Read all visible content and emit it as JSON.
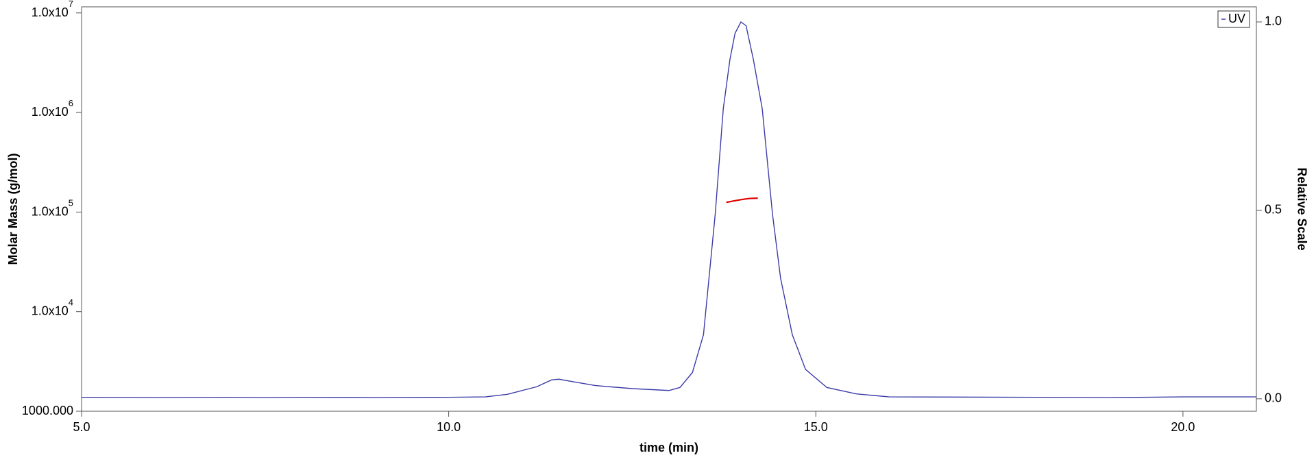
{
  "chart_data": {
    "type": "line",
    "xlabel": "time (min)",
    "ylabel": "Molar Mass (g/mol)",
    "y2label": "Relative Scale",
    "xlim": [
      5,
      21
    ],
    "xticks": [
      {
        "value": 5,
        "label": "5.0"
      },
      {
        "value": 10,
        "label": "10.0"
      },
      {
        "value": 15,
        "label": "15.0"
      },
      {
        "value": 20,
        "label": "20.0"
      }
    ],
    "ylim": [
      1000,
      11500000
    ],
    "yscale": "log",
    "yticks": [
      {
        "value": 1000,
        "label": "1000.000"
      },
      {
        "value": 10000,
        "label": "1.0x10",
        "exp": "4"
      },
      {
        "value": 100000,
        "label": "1.0x10",
        "exp": "5"
      },
      {
        "value": 1000000,
        "label": "1.0x10",
        "exp": "6"
      },
      {
        "value": 10000000,
        "label": "1.0x10",
        "exp": "7"
      }
    ],
    "y2lim": [
      -0.033,
      1.04
    ],
    "y2ticks": [
      {
        "value": 0,
        "label": "0.0"
      },
      {
        "value": 0.5,
        "label": "0.5"
      },
      {
        "value": 1,
        "label": "1.0"
      }
    ],
    "legend": "upper right",
    "series": [
      {
        "name": "UV",
        "color": "#3b3ba8",
        "axis": "y2",
        "x": [
          5,
          6,
          7,
          7.5,
          8,
          9,
          10,
          10.5,
          10.8,
          11.0,
          11.2,
          11.4,
          11.5,
          11.7,
          12.0,
          12.5,
          13.0,
          13.15,
          13.32,
          13.47,
          13.63,
          13.74,
          13.83,
          13.9,
          13.98,
          14.05,
          14.15,
          14.27,
          14.41,
          14.52,
          14.68,
          14.86,
          15.15,
          15.55,
          16,
          18,
          19,
          20,
          21
        ],
        "values": [
          0.004,
          0.003,
          0.004,
          0.003,
          0.004,
          0.003,
          0.004,
          0.005,
          0.012,
          0.022,
          0.032,
          0.05,
          0.052,
          0.045,
          0.035,
          0.027,
          0.022,
          0.03,
          0.07,
          0.17,
          0.49,
          0.77,
          0.9,
          0.97,
          1.0,
          0.99,
          0.9,
          0.77,
          0.49,
          0.32,
          0.17,
          0.078,
          0.03,
          0.013,
          0.005,
          0.004,
          0.003,
          0.005,
          0.005
        ]
      },
      {
        "color": "#dd0000",
        "axis": "y",
        "x": [
          13.78,
          13.9,
          14.0,
          14.1,
          14.21
        ],
        "values": [
          125000,
          130000,
          134000,
          137000,
          138000
        ]
      }
    ]
  }
}
